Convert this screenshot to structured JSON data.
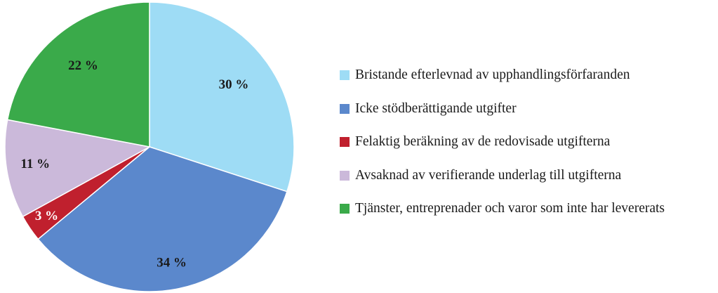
{
  "chart_data": {
    "type": "pie",
    "categories": [
      "Bristande efterlevnad av upphandlingsförfaranden",
      "Icke stödberättigande utgifter",
      "Felaktig beräkning av de redovisade utgifterna",
      "Avsaknad av verifierande underlag till utgifterna",
      "Tjänster, entreprenader och varor som inte har levererats"
    ],
    "values": [
      30,
      34,
      3,
      11,
      22
    ],
    "value_labels": [
      "30 %",
      "34 %",
      "3 %",
      "11 %",
      "22 %"
    ],
    "colors": [
      "#9edcf5",
      "#5b88cc",
      "#c0202e",
      "#cbb9da",
      "#3aaa4a"
    ],
    "label_colors": [
      "#1a1a1a",
      "#1a1a1a",
      "#ffffff",
      "#1a1a1a",
      "#1a1a1a"
    ],
    "start_angle_deg": 0,
    "direction": "clockwise",
    "legend_position": "right"
  }
}
